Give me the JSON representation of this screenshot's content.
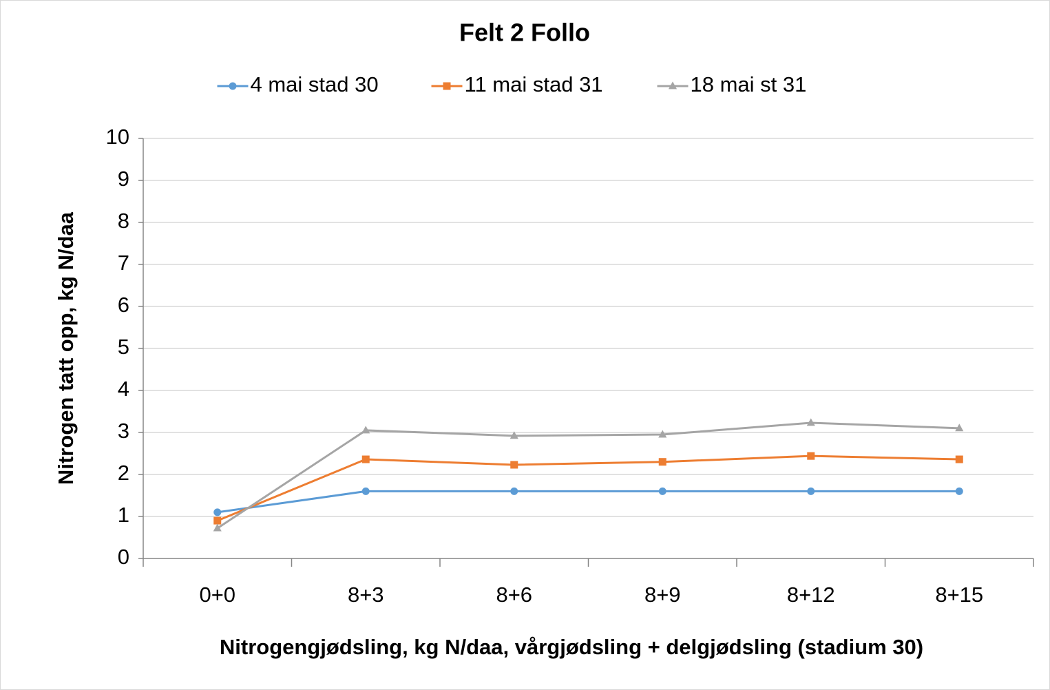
{
  "chart_data": {
    "type": "line",
    "title": "Felt 2 Follo",
    "x_label": "Nitrogengjødsling, kg N/daa, vårgjødsling + delgjødsling (stadium 30)",
    "y_label": "Nitrogen tatt opp, kg N/daa",
    "categories": [
      "0+0",
      "8+3",
      "8+6",
      "8+9",
      "8+12",
      "8+15"
    ],
    "series": [
      {
        "name": "4 mai stad 30",
        "color": "#5b9bd5",
        "marker": "circle",
        "values": [
          1.1,
          1.6,
          1.6,
          1.6,
          1.6,
          1.6
        ]
      },
      {
        "name": "11 mai stad 31",
        "color": "#ed7d31",
        "marker": "square",
        "values": [
          0.9,
          2.36,
          2.23,
          2.3,
          2.44,
          2.36
        ]
      },
      {
        "name": "18 mai st 31",
        "color": "#a5a5a5",
        "marker": "triangle",
        "values": [
          0.72,
          3.05,
          2.92,
          2.95,
          3.23,
          3.1
        ]
      }
    ],
    "ylim": [
      0,
      10
    ],
    "yticks": [
      0,
      1,
      2,
      3,
      4,
      5,
      6,
      7,
      8,
      9,
      10
    ],
    "grid": true,
    "legend": "top"
  }
}
